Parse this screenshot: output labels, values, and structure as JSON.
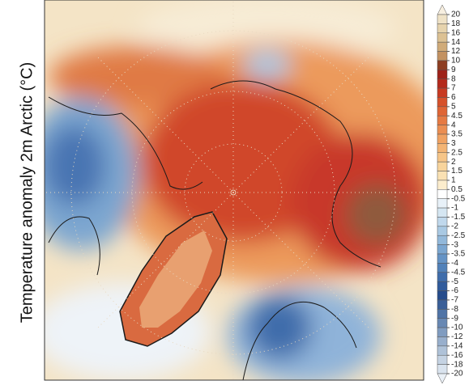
{
  "title": "Temperature anomaly 2m Arctic (°C)",
  "colorbar": {
    "levels": [
      20,
      18,
      16,
      14,
      12,
      10,
      9,
      8,
      7,
      6,
      5,
      4.5,
      4,
      3.5,
      3,
      2.5,
      2,
      1.5,
      1,
      0.5,
      -0.5,
      -1,
      -1.5,
      -2,
      -2.5,
      -3,
      -3.5,
      -4,
      -4.5,
      -5,
      -6,
      -7,
      -8,
      -9,
      -10,
      -12,
      -14,
      -16,
      -18,
      -20
    ],
    "colors": [
      "#f7efe0",
      "#efe2c6",
      "#e6d3ad",
      "#dcc193",
      "#d0ab79",
      "#c39262",
      "#8d3e22",
      "#9e2219",
      "#b42a1c",
      "#c83a22",
      "#d6512b",
      "#df6535",
      "#e67a43",
      "#eb8e52",
      "#f0a262",
      "#f3b474",
      "#f6c588",
      "#f8d49c",
      "#fae1b3",
      "#fcedcd",
      "#ffffff",
      "#e8f1f8",
      "#d5e6f2",
      "#c0d8ec",
      "#a9c9e3",
      "#92b8da",
      "#7ba6d0",
      "#6593c5",
      "#5181b9",
      "#3f6dab",
      "#305b9c",
      "#264c8c",
      "#3a5f98",
      "#5074a6",
      "#6888b3",
      "#809cc0",
      "#98afcc",
      "#afc2d8",
      "#c5d3e3",
      "#d9e3ee",
      "#eaf0f6"
    ]
  }
}
